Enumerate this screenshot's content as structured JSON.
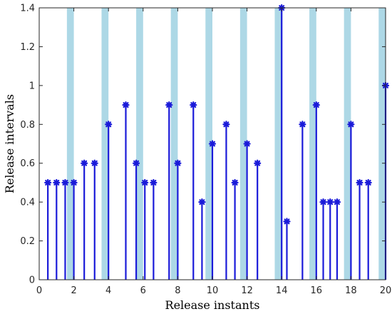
{
  "chart_data": {
    "type": "stem",
    "xlabel": "Release instants",
    "ylabel": "Release intervals",
    "xlim": [
      0,
      20
    ],
    "ylim": [
      0,
      1.4
    ],
    "xticks": [
      0,
      2,
      4,
      6,
      8,
      10,
      12,
      14,
      16,
      18,
      20
    ],
    "yticks": [
      0,
      0.2,
      0.4,
      0.6,
      0.8,
      1,
      1.2,
      1.4
    ],
    "grid": false,
    "colors": {
      "stem": "#1a1ad9",
      "band": "#add8e6",
      "axis": "#262626"
    },
    "shaded_intervals": [
      [
        1.6,
        2.0
      ],
      [
        3.6,
        4.0
      ],
      [
        5.6,
        6.0
      ],
      [
        7.6,
        8.0
      ],
      [
        9.6,
        10.0
      ],
      [
        11.6,
        12.0
      ],
      [
        13.6,
        14.0
      ],
      [
        15.6,
        16.0
      ],
      [
        17.6,
        18.0
      ],
      [
        19.6,
        20.0
      ]
    ],
    "points": [
      {
        "x": 0.5,
        "y": 0.5
      },
      {
        "x": 1.0,
        "y": 0.5
      },
      {
        "x": 1.5,
        "y": 0.5
      },
      {
        "x": 2.0,
        "y": 0.5
      },
      {
        "x": 2.6,
        "y": 0.6
      },
      {
        "x": 3.2,
        "y": 0.6
      },
      {
        "x": 4.0,
        "y": 0.8
      },
      {
        "x": 5.0,
        "y": 0.9
      },
      {
        "x": 5.6,
        "y": 0.6
      },
      {
        "x": 6.1,
        "y": 0.5
      },
      {
        "x": 6.6,
        "y": 0.5
      },
      {
        "x": 7.5,
        "y": 0.9
      },
      {
        "x": 8.0,
        "y": 0.6
      },
      {
        "x": 8.9,
        "y": 0.9
      },
      {
        "x": 9.4,
        "y": 0.4
      },
      {
        "x": 10.0,
        "y": 0.7
      },
      {
        "x": 10.8,
        "y": 0.8
      },
      {
        "x": 11.3,
        "y": 0.5
      },
      {
        "x": 12.0,
        "y": 0.7
      },
      {
        "x": 12.6,
        "y": 0.6
      },
      {
        "x": 14.0,
        "y": 1.4
      },
      {
        "x": 14.3,
        "y": 0.3
      },
      {
        "x": 15.2,
        "y": 0.8
      },
      {
        "x": 16.0,
        "y": 0.9
      },
      {
        "x": 16.4,
        "y": 0.4
      },
      {
        "x": 16.8,
        "y": 0.4
      },
      {
        "x": 17.2,
        "y": 0.4
      },
      {
        "x": 18.0,
        "y": 0.8
      },
      {
        "x": 18.5,
        "y": 0.5
      },
      {
        "x": 19.0,
        "y": 0.5
      },
      {
        "x": 20.0,
        "y": 1.0
      }
    ]
  }
}
